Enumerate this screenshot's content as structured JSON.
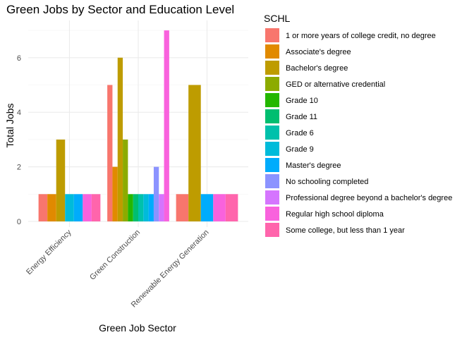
{
  "chart_data": {
    "type": "bar",
    "title": "Green Jobs by Sector and Education Level",
    "xlabel": "Green Job Sector",
    "ylabel": "Total Jobs",
    "ylim": [
      0,
      7.35
    ],
    "yticks": [
      0,
      2,
      4,
      6
    ],
    "grid": true,
    "legend_position": "right",
    "legend_title": "SCHL",
    "categories": [
      "Energy Efficiency",
      "Green Construction",
      "Renewable Energy Generation"
    ],
    "series": [
      {
        "name": "1 or more years of college credit, no degree",
        "color": "#F8766D",
        "values": [
          1,
          5,
          1
        ]
      },
      {
        "name": "Associate's degree",
        "color": "#E18A00",
        "values": [
          1,
          2,
          null
        ]
      },
      {
        "name": "Bachelor's degree",
        "color": "#BE9C00",
        "values": [
          3,
          6,
          5
        ]
      },
      {
        "name": "GED or alternative credential",
        "color": "#8CAB00",
        "values": [
          null,
          3,
          null
        ]
      },
      {
        "name": "Grade 10",
        "color": "#24B700",
        "values": [
          null,
          1,
          null
        ]
      },
      {
        "name": "Grade 11",
        "color": "#00BE70",
        "values": [
          null,
          1,
          null
        ]
      },
      {
        "name": "Grade 6",
        "color": "#00C1AB",
        "values": [
          null,
          1,
          null
        ]
      },
      {
        "name": "Grade 9",
        "color": "#00BBDA",
        "values": [
          1,
          1,
          null
        ]
      },
      {
        "name": "Master's degree",
        "color": "#00ACFC",
        "values": [
          1,
          1,
          1
        ]
      },
      {
        "name": "No schooling completed",
        "color": "#8B93FF",
        "values": [
          null,
          2,
          null
        ]
      },
      {
        "name": "Professional degree beyond a bachelor's degree",
        "color": "#D575FE",
        "values": [
          null,
          1,
          null
        ]
      },
      {
        "name": "Regular high school diploma",
        "color": "#F962DD",
        "values": [
          1,
          7,
          1
        ]
      },
      {
        "name": "Some college, but less than 1 year",
        "color": "#FF65AC",
        "values": [
          1,
          null,
          1
        ]
      }
    ]
  }
}
